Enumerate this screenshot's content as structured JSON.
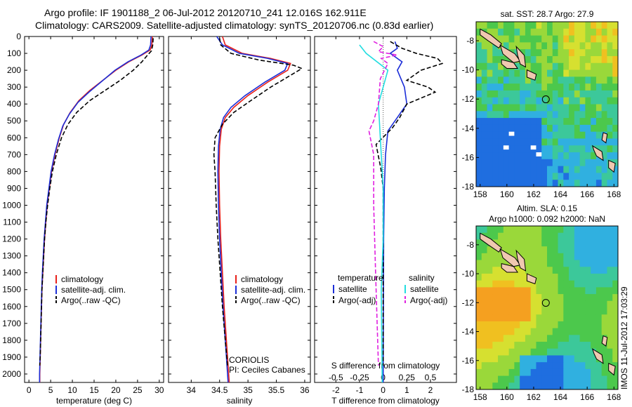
{
  "title_line1": "Argo profile: IF 1901188_2 06-Jul-2012 20120710_241 12.016S 162.911E",
  "title_line2": "Climatology: CARS2009. Satellite-adjusted climatology: synTS_20120706.nc (0.83d earlier)",
  "colors": {
    "climatology": "#e8201a",
    "satellite": "#1c2ed8",
    "argo": "#000000",
    "salinity_satellite": "#22dde0",
    "salinity_argo": "#e020e0",
    "land": "#f0c8b0"
  },
  "depth_ticks": [
    0,
    100,
    200,
    300,
    400,
    500,
    600,
    700,
    800,
    900,
    1000,
    1100,
    1200,
    1300,
    1400,
    1500,
    1600,
    1700,
    1800,
    1900,
    2000
  ],
  "chart_data": [
    {
      "type": "line",
      "id": "temperature",
      "xlabel": "temperature (deg C)",
      "ylabel": "",
      "xlim": [
        -1,
        31
      ],
      "ylim": [
        2050,
        0
      ],
      "xticks": [
        0,
        5,
        10,
        15,
        20,
        25,
        30
      ],
      "xtick_labels": [
        "0",
        "5",
        "10",
        "15",
        "20",
        "25",
        "30"
      ],
      "legend": [
        "climatology",
        "satellite-adj. clim.",
        "Argo(..raw -QC)"
      ],
      "legend_position": "lower-left",
      "series": [
        {
          "name": "climatology",
          "style": "solid",
          "points": [
            [
              28.4,
              0
            ],
            [
              28.3,
              50
            ],
            [
              27.9,
              80
            ],
            [
              26,
              110
            ],
            [
              23,
              150
            ],
            [
              20,
              200
            ],
            [
              17,
              260
            ],
            [
              14,
              320
            ],
            [
              11.5,
              380
            ],
            [
              9.5,
              450
            ],
            [
              8,
              520
            ],
            [
              7,
              600
            ],
            [
              6,
              700
            ],
            [
              5.2,
              800
            ],
            [
              4.7,
              900
            ],
            [
              4.2,
              1000
            ],
            [
              3.9,
              1100
            ],
            [
              3.6,
              1200
            ],
            [
              3.4,
              1300
            ],
            [
              3.2,
              1400
            ],
            [
              3.0,
              1500
            ],
            [
              2.9,
              1600
            ],
            [
              2.8,
              1700
            ],
            [
              2.7,
              1800
            ],
            [
              2.6,
              1900
            ],
            [
              2.5,
              2000
            ],
            [
              2.5,
              2050
            ]
          ]
        },
        {
          "name": "satellite-adj. clim.",
          "style": "solid",
          "points": [
            [
              28.1,
              0
            ],
            [
              28.0,
              50
            ],
            [
              27.6,
              80
            ],
            [
              25.8,
              110
            ],
            [
              22.8,
              150
            ],
            [
              19.8,
              200
            ],
            [
              16.8,
              265
            ],
            [
              13.8,
              330
            ],
            [
              11.3,
              390
            ],
            [
              9.3,
              460
            ],
            [
              7.8,
              530
            ],
            [
              6.8,
              610
            ],
            [
              5.9,
              700
            ],
            [
              5.1,
              800
            ],
            [
              4.6,
              900
            ],
            [
              4.1,
              1000
            ],
            [
              3.8,
              1100
            ],
            [
              3.5,
              1200
            ],
            [
              3.3,
              1300
            ],
            [
              3.1,
              1400
            ],
            [
              2.95,
              1500
            ],
            [
              2.85,
              1600
            ],
            [
              2.75,
              1700
            ],
            [
              2.65,
              1800
            ],
            [
              2.55,
              1900
            ],
            [
              2.45,
              2000
            ],
            [
              2.45,
              2050
            ]
          ]
        },
        {
          "name": "Argo(..raw -QC)",
          "style": "dashed",
          "points": [
            [
              28.6,
              10
            ],
            [
              28.5,
              50
            ],
            [
              28.2,
              85
            ],
            [
              27.3,
              110
            ],
            [
              26,
              150
            ],
            [
              24,
              200
            ],
            [
              21,
              260
            ],
            [
              17.5,
              320
            ],
            [
              14,
              380
            ],
            [
              11,
              450
            ],
            [
              9,
              520
            ],
            [
              7.5,
              600
            ],
            [
              6.3,
              700
            ],
            [
              5.4,
              800
            ],
            [
              4.8,
              900
            ],
            [
              4.3,
              1000
            ],
            [
              3.9,
              1100
            ],
            [
              3.6,
              1200
            ],
            [
              3.4,
              1300
            ],
            [
              3.2,
              1400
            ],
            [
              3.0,
              1500
            ],
            [
              2.9,
              1600
            ],
            [
              2.8,
              1700
            ],
            [
              2.7,
              1800
            ],
            [
              2.6,
              1900
            ],
            [
              2.5,
              1950
            ]
          ]
        }
      ]
    },
    {
      "type": "line",
      "id": "salinity",
      "xlabel": "salinity",
      "ylabel": "",
      "xlim": [
        33.6,
        36.1
      ],
      "ylim": [
        2050,
        0
      ],
      "xticks": [
        34,
        34.5,
        35,
        35.5,
        36
      ],
      "xtick_labels": [
        "34",
        "34.5",
        "35",
        "35.5",
        "36"
      ],
      "legend": [
        "climatology",
        "satellite-adj. clim.",
        "Argo(..raw -QC)"
      ],
      "legend_position": "lower-right",
      "annotation": [
        "CORIOLIS",
        "PI: Ceciles Cabanes"
      ],
      "series": [
        {
          "name": "climatology",
          "style": "solid",
          "points": [
            [
              34.55,
              0
            ],
            [
              34.6,
              50
            ],
            [
              34.9,
              100
            ],
            [
              35.4,
              130
            ],
            [
              35.75,
              160
            ],
            [
              35.7,
              200
            ],
            [
              35.35,
              270
            ],
            [
              35.0,
              350
            ],
            [
              34.75,
              420
            ],
            [
              34.6,
              480
            ],
            [
              34.53,
              550
            ],
            [
              34.5,
              650
            ],
            [
              34.49,
              800
            ],
            [
              34.5,
              1000
            ],
            [
              34.52,
              1200
            ],
            [
              34.55,
              1400
            ],
            [
              34.58,
              1600
            ],
            [
              34.62,
              1800
            ],
            [
              34.66,
              2000
            ],
            [
              34.67,
              2050
            ]
          ]
        },
        {
          "name": "satellite-adj. clim.",
          "style": "solid",
          "points": [
            [
              34.45,
              0
            ],
            [
              34.55,
              50
            ],
            [
              34.85,
              100
            ],
            [
              35.35,
              130
            ],
            [
              35.7,
              160
            ],
            [
              35.65,
              200
            ],
            [
              35.3,
              270
            ],
            [
              34.95,
              350
            ],
            [
              34.7,
              420
            ],
            [
              34.57,
              480
            ],
            [
              34.51,
              550
            ],
            [
              34.48,
              650
            ],
            [
              34.47,
              800
            ],
            [
              34.48,
              1000
            ],
            [
              34.5,
              1200
            ],
            [
              34.53,
              1400
            ],
            [
              34.56,
              1600
            ],
            [
              34.6,
              1800
            ],
            [
              34.64,
              2000
            ],
            [
              34.65,
              2050
            ]
          ]
        },
        {
          "name": "Argo(..raw -QC)",
          "style": "dashed",
          "points": [
            [
              34.5,
              10
            ],
            [
              34.52,
              50
            ],
            [
              34.7,
              100
            ],
            [
              35.2,
              140
            ],
            [
              35.8,
              170
            ],
            [
              35.95,
              190
            ],
            [
              35.7,
              240
            ],
            [
              35.4,
              300
            ],
            [
              35.05,
              380
            ],
            [
              34.75,
              450
            ],
            [
              34.55,
              520
            ],
            [
              34.42,
              600
            ],
            [
              34.4,
              700
            ],
            [
              34.42,
              800
            ],
            [
              34.44,
              1000
            ],
            [
              34.47,
              1200
            ],
            [
              34.51,
              1400
            ],
            [
              34.55,
              1600
            ],
            [
              34.6,
              1800
            ],
            [
              34.64,
              1950
            ]
          ]
        }
      ]
    },
    {
      "type": "line",
      "id": "difference",
      "xlabel": "T difference from climatology",
      "xlabel_top": "S difference from climatology",
      "xlim": [
        -2.9,
        3.1
      ],
      "ylim": [
        2050,
        0
      ],
      "xticks": [
        -2,
        -1,
        0,
        1,
        2
      ],
      "xtick_labels": [
        "-2",
        "-1",
        "0",
        "1",
        "2"
      ],
      "s_xticks": [
        -0.5,
        -0.25,
        0,
        0.25,
        0.5
      ],
      "s_xtick_labels": [
        "-0.5",
        "-0.25",
        "0",
        "0.25",
        "0.5"
      ],
      "legend_temperature_title": "temperature",
      "legend_salinity_title": "salinity",
      "legend": [
        "satellite",
        "Argo(-adj)",
        "satellite",
        "Argo(-adj)"
      ],
      "series": [
        {
          "name": "T satellite",
          "style": "solid",
          "points": [
            [
              0.5,
              30
            ],
            [
              0.6,
              70
            ],
            [
              0.3,
              100
            ],
            [
              0.8,
              150
            ],
            [
              0.6,
              200
            ],
            [
              0.9,
              300
            ],
            [
              1.0,
              400
            ],
            [
              0.6,
              480
            ],
            [
              0.2,
              560
            ],
            [
              0.1,
              700
            ],
            [
              0.05,
              900
            ],
            [
              0.02,
              1200
            ],
            [
              0.0,
              2050
            ]
          ]
        },
        {
          "name": "T Argo(-adj)",
          "style": "dashed",
          "points": [
            [
              0.3,
              30
            ],
            [
              0.8,
              70
            ],
            [
              1.4,
              100
            ],
            [
              2.3,
              130
            ],
            [
              2.5,
              160
            ],
            [
              1.6,
              200
            ],
            [
              1.0,
              260
            ],
            [
              1.9,
              300
            ],
            [
              2.2,
              330
            ],
            [
              1.0,
              400
            ],
            [
              0.7,
              480
            ],
            [
              0.4,
              540
            ],
            [
              -0.3,
              640
            ],
            [
              -0.1,
              780
            ],
            [
              0.0,
              900
            ],
            [
              0.0,
              1000
            ],
            [
              0.0,
              1950
            ]
          ]
        },
        {
          "name": "S satellite",
          "style": "solid",
          "points": [
            [
              -0.25,
              50
            ],
            [
              -0.18,
              100
            ],
            [
              0.05,
              200
            ],
            [
              0.0,
              300
            ],
            [
              -0.05,
              400
            ],
            [
              -0.03,
              600
            ],
            [
              0.0,
              900
            ],
            [
              0.0,
              1200
            ],
            [
              -0.02,
              1500
            ],
            [
              -0.01,
              2050
            ]
          ]
        },
        {
          "name": "S Argo(-adj)",
          "style": "dashed",
          "points": [
            [
              -0.1,
              30
            ],
            [
              0.0,
              60
            ],
            [
              -0.05,
              90
            ],
            [
              0.15,
              110
            ],
            [
              -0.02,
              130
            ],
            [
              0.05,
              160
            ],
            [
              -0.03,
              250
            ],
            [
              -0.05,
              400
            ],
            [
              -0.1,
              500
            ],
            [
              -0.15,
              560
            ],
            [
              -0.1,
              700
            ],
            [
              -0.1,
              1000
            ],
            [
              -0.08,
              1400
            ],
            [
              -0.05,
              1950
            ]
          ]
        }
      ]
    },
    {
      "type": "heatmap",
      "id": "sst-map",
      "title": "sat. SST: 28.7 Argo: 27.9",
      "xlim": [
        157.7,
        168.3
      ],
      "ylim": [
        -18,
        -6.7
      ],
      "xticks": [
        158,
        160,
        162,
        164,
        166,
        168
      ],
      "xtick_labels": [
        "158",
        "160",
        "162",
        "164",
        "166",
        "168"
      ],
      "yticks": [
        -8,
        -10,
        -12,
        -14,
        -16,
        -18
      ],
      "ytick_labels": [
        "-8",
        "-10",
        "-12",
        "-14",
        "-16",
        "-18"
      ],
      "marker": [
        162.911,
        -12.016
      ]
    },
    {
      "type": "heatmap",
      "id": "sla-map",
      "title": "Altim. SLA: 0.15",
      "subtitle": "Argo h1000: 0.092 h2000: NaN",
      "xlim": [
        157.7,
        168.3
      ],
      "ylim": [
        -18,
        -6.7
      ],
      "xticks": [
        158,
        160,
        162,
        164,
        166,
        168
      ],
      "xtick_labels": [
        "158",
        "160",
        "162",
        "164",
        "166",
        "168"
      ],
      "yticks": [
        -8,
        -10,
        -12,
        -14,
        -16,
        -18
      ],
      "ytick_labels": [
        "-8",
        "-10",
        "-12",
        "-14",
        "-16",
        "-18"
      ],
      "marker": [
        162.911,
        -12.016
      ]
    }
  ],
  "stamp": "IMOS 11-Jul-2012 17:03:29"
}
